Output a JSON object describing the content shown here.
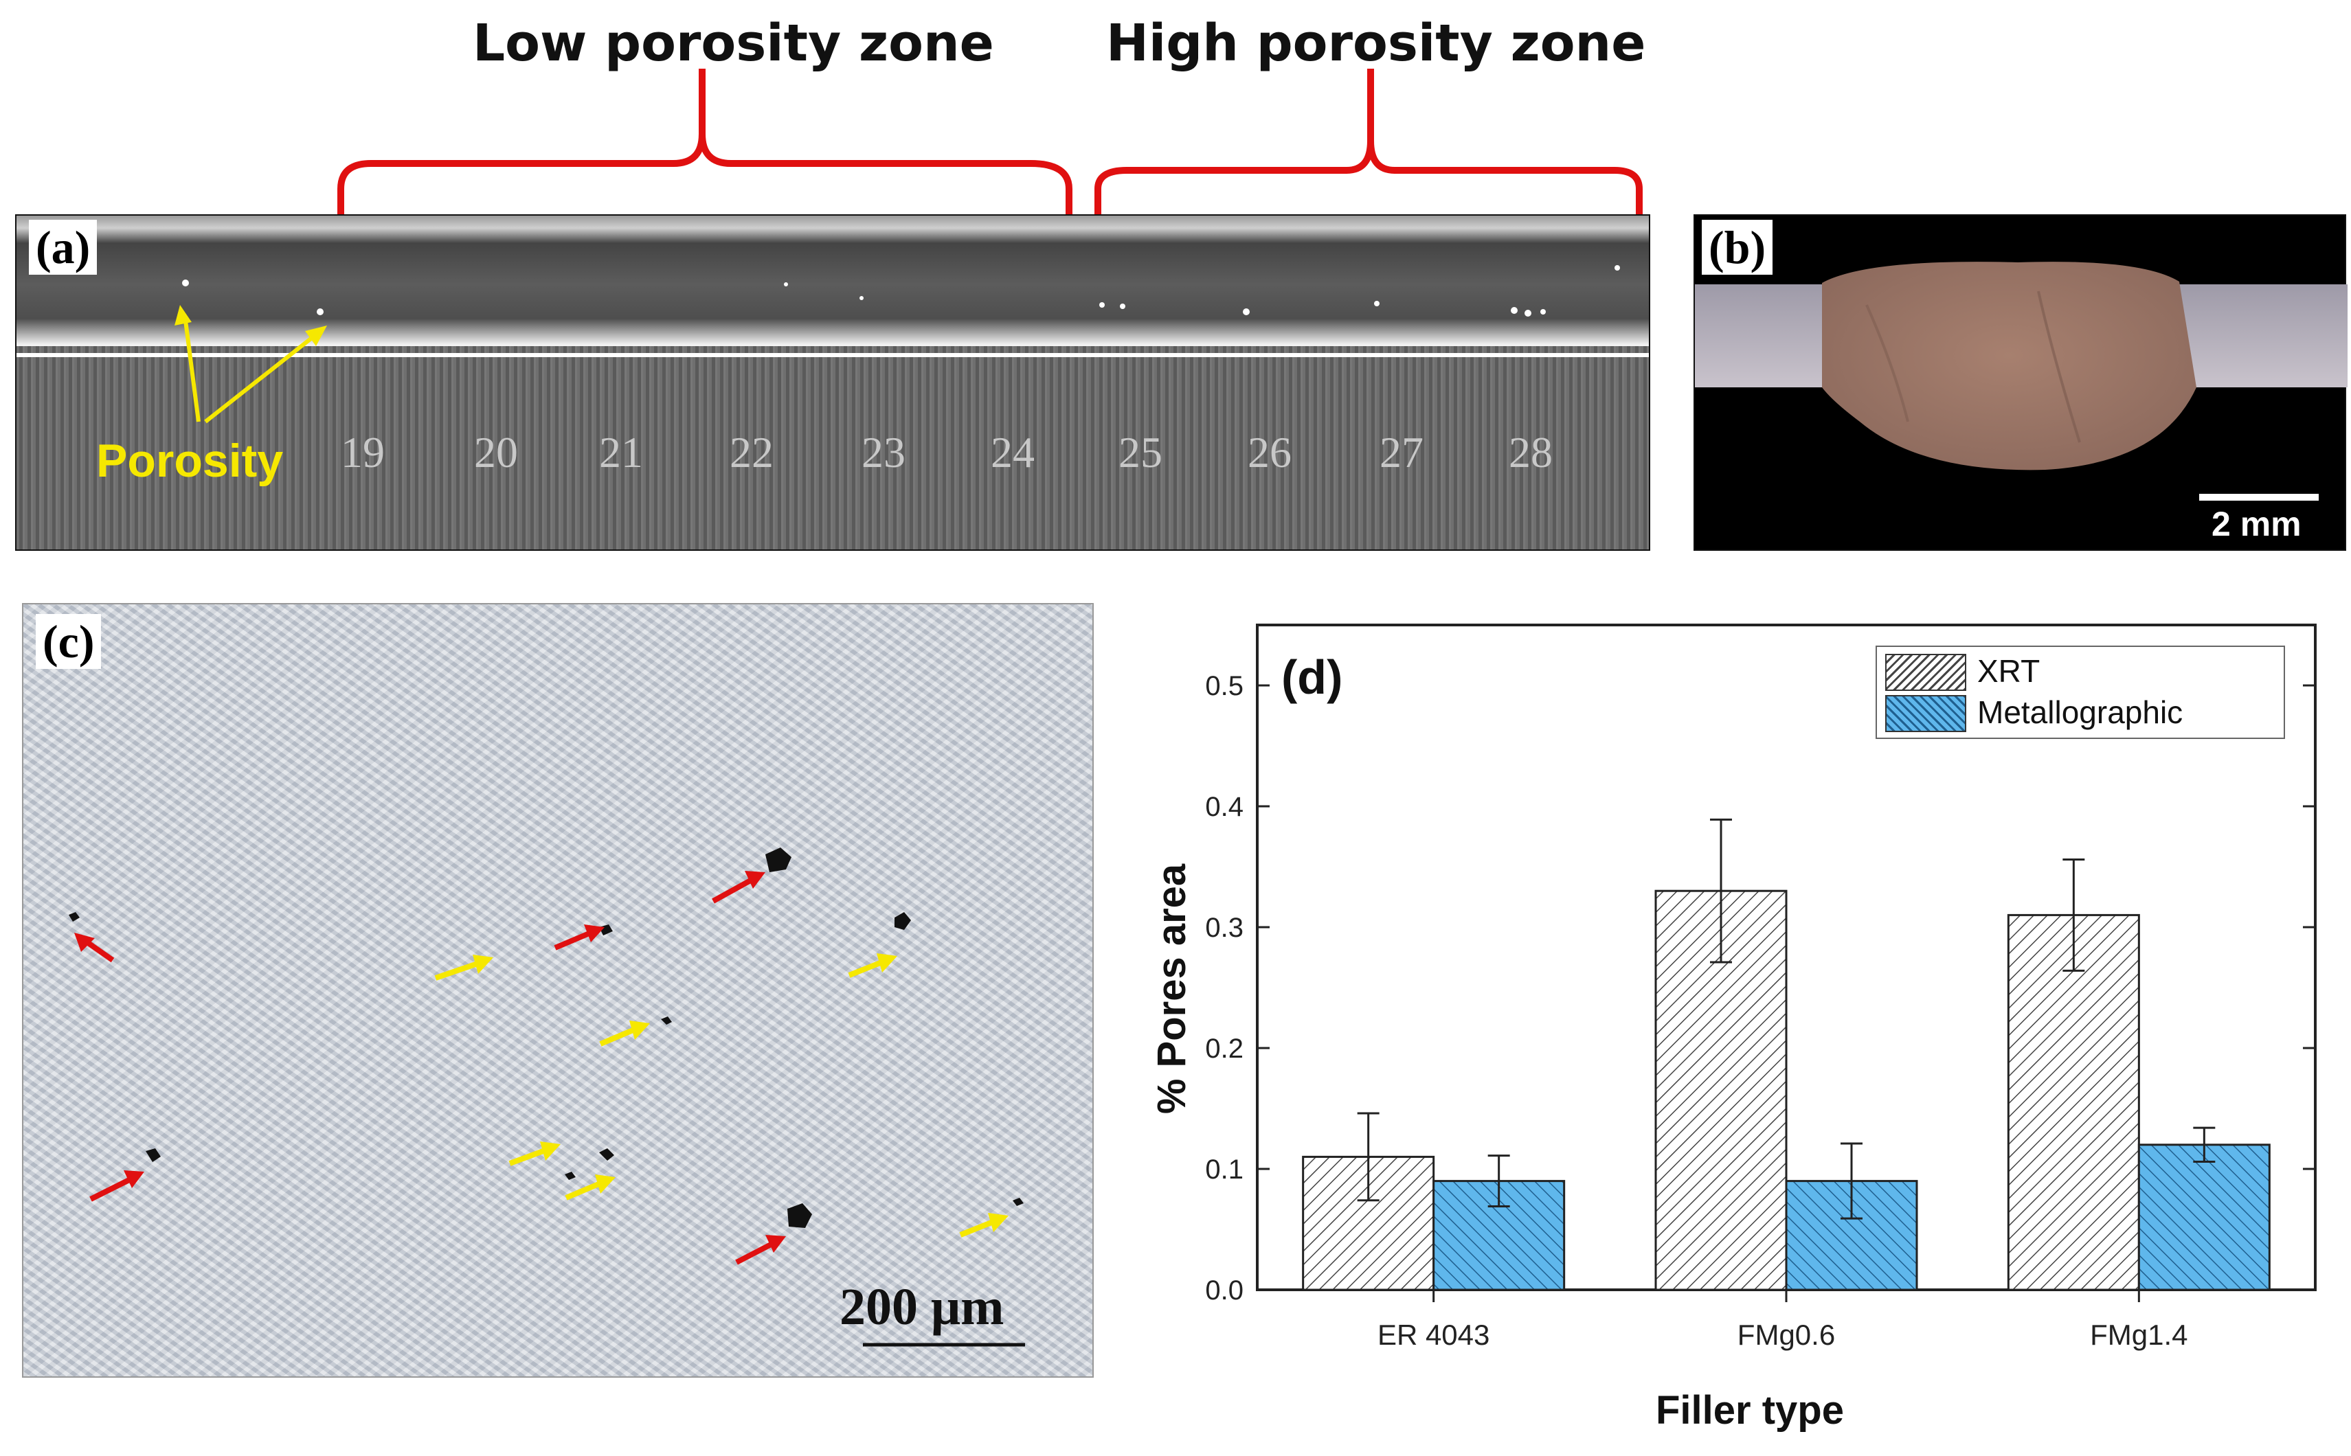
{
  "zones": {
    "low": "Low porosity zone",
    "high": "High porosity zone"
  },
  "colors": {
    "bracket": "#e01010",
    "arrow_yellow": "#f6e800",
    "arrow_red": "#e01010",
    "xrt_hatch": "#444444",
    "metallographic": "#5fb7ec"
  },
  "panel_a": {
    "label": "(a)",
    "porosity_label": "Porosity",
    "ruler_numbers": [
      "19",
      "20",
      "21",
      "22",
      "23",
      "24",
      "25",
      "26",
      "27",
      "28"
    ]
  },
  "panel_b": {
    "label": "(b)",
    "scale_bar": "2 mm"
  },
  "panel_c": {
    "label": "(c)",
    "scale_bar": "200 μm"
  },
  "panel_d": {
    "label": "(d)"
  },
  "chart_data": {
    "type": "bar",
    "categories": [
      "ER 4043",
      "FMg0.6",
      "FMg1.4"
    ],
    "series": [
      {
        "name": "XRT",
        "values": [
          0.11,
          0.33,
          0.31
        ],
        "errors": [
          0.036,
          0.059,
          0.046
        ]
      },
      {
        "name": "Metallographic",
        "values": [
          0.09,
          0.09,
          0.12
        ],
        "errors": [
          0.021,
          0.031,
          0.014
        ]
      }
    ],
    "xlabel": "Filler type",
    "ylabel": "% Pores area",
    "ylim": [
      0.0,
      0.55
    ],
    "yticks": [
      "0.0",
      "0.1",
      "0.2",
      "0.3",
      "0.4",
      "0.5"
    ],
    "legend_position": "top-right",
    "grid": false
  }
}
